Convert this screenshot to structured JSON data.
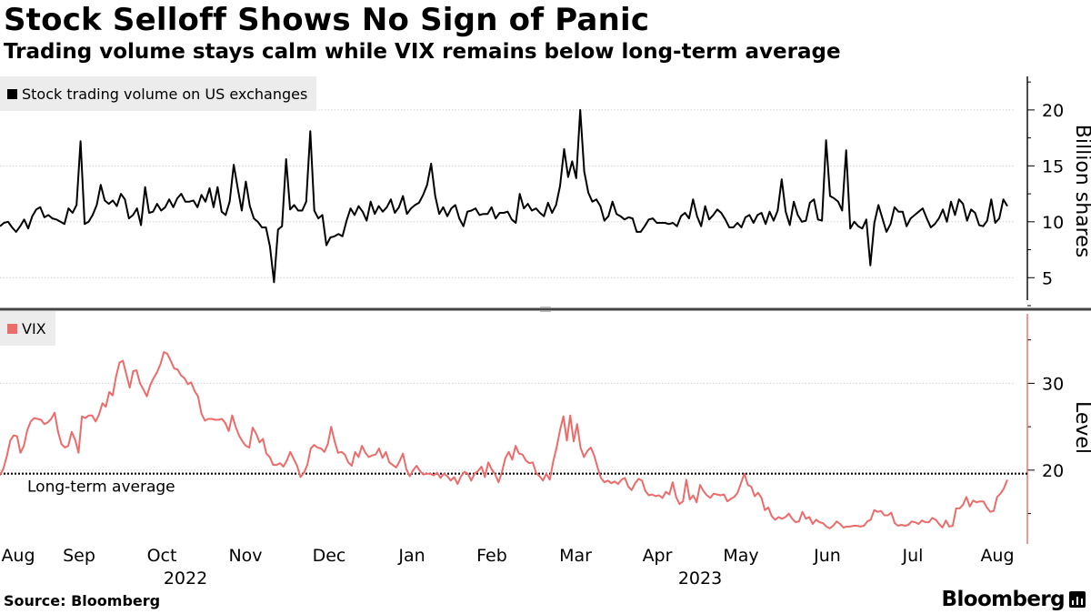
{
  "header": {
    "title": "Stock Selloff Shows No Sign of Panic",
    "subtitle": "Trading volume stays calm while VIX remains below long-term average"
  },
  "footer": {
    "source": "Source: Bloomberg",
    "logo": "Bloomberg"
  },
  "chart_data": [
    {
      "type": "line",
      "title": "Stock trading volume on US exchanges",
      "ylabel": "Billion shares",
      "ylim": [
        2.5,
        23
      ],
      "yticks": [
        5,
        10,
        15,
        20
      ],
      "color": "#000000",
      "legend": "Stock trading volume on US exchanges",
      "legend_position": "top-left",
      "series": [
        {
          "name": "Stock trading volume on US exchanges",
          "values": [
            9.6,
            9.9,
            10.0,
            9.5,
            9.1,
            9.6,
            10.2,
            9.4,
            10.5,
            11.1,
            11.3,
            10.4,
            10.6,
            10.3,
            10.2,
            10.0,
            9.8,
            11.2,
            10.8,
            11.5,
            17.2,
            9.8,
            10.0,
            10.6,
            11.5,
            13.3,
            11.9,
            11.6,
            11.9,
            11.4,
            12.5,
            12.0,
            10.3,
            10.6,
            11.2,
            9.7,
            13.1,
            10.8,
            10.9,
            11.6,
            11.0,
            11.3,
            12.0,
            11.3,
            12.1,
            12.5,
            11.8,
            11.8,
            11.9,
            11.3,
            12.4,
            11.8,
            13.0,
            11.3,
            13.1,
            10.9,
            10.6,
            11.8,
            15.1,
            13.0,
            11.0,
            13.6,
            11.4,
            10.3,
            10.0,
            9.5,
            9.5,
            7.8,
            4.6,
            9.3,
            9.6,
            15.6,
            11.1,
            11.5,
            11.0,
            11.0,
            11.8,
            18.1,
            11.0,
            10.3,
            10.6,
            7.9,
            8.6,
            8.7,
            8.9,
            8.7,
            10.1,
            11.2,
            10.6,
            11.4,
            10.9,
            10.1,
            11.8,
            10.7,
            11.4,
            10.9,
            11.3,
            12.0,
            10.8,
            11.3,
            12.3,
            10.7,
            11.2,
            11.5,
            11.7,
            12.4,
            13.3,
            15.2,
            12.3,
            10.7,
            11.3,
            10.5,
            11.2,
            11.5,
            10.3,
            9.6,
            10.9,
            11.0,
            11.2,
            10.6,
            10.7,
            10.7,
            11.3,
            10.3,
            10.8,
            10.8,
            10.9,
            10.2,
            9.9,
            12.5,
            11.2,
            11.6,
            11.0,
            11.2,
            10.8,
            10.5,
            11.7,
            10.8,
            11.5,
            13.2,
            16.5,
            14.0,
            15.4,
            13.9,
            20.0,
            14.5,
            12.6,
            11.8,
            12.0,
            11.4,
            10.1,
            10.5,
            11.8,
            10.7,
            10.5,
            10.2,
            10.4,
            10.3,
            9.1,
            9.1,
            9.6,
            10.2,
            10.3,
            9.9,
            9.9,
            9.9,
            9.8,
            9.9,
            9.6,
            10.5,
            10.8,
            10.3,
            12.0,
            10.5,
            9.6,
            11.4,
            10.2,
            10.6,
            11.1,
            10.8,
            10.2,
            9.5,
            9.5,
            9.9,
            9.5,
            10.4,
            10.6,
            9.9,
            10.6,
            10.8,
            9.8,
            10.9,
            10.1,
            11.0,
            13.8,
            10.9,
            9.7,
            11.8,
            10.6,
            10.0,
            10.1,
            11.7,
            12.0,
            10.2,
            10.1,
            17.3,
            12.3,
            12.1,
            11.8,
            11.0,
            16.4,
            9.4,
            10.0,
            9.6,
            9.4,
            10.2,
            6.1,
            9.9,
            11.5,
            10.3,
            9.1,
            9.8,
            11.3,
            10.9,
            10.9,
            9.6,
            10.3,
            10.6,
            10.9,
            11.2,
            10.3,
            9.5,
            9.8,
            10.3,
            11.1,
            10.0,
            11.8,
            10.6,
            12.0,
            11.6,
            10.1,
            11.1,
            10.8,
            9.7,
            9.6,
            10.1,
            12.0,
            9.9,
            10.3,
            12.0,
            11.4
          ]
        }
      ]
    },
    {
      "type": "line",
      "title": "VIX",
      "ylabel": "Level",
      "ylim": [
        11.5,
        38
      ],
      "yticks": [
        20,
        30
      ],
      "color": "#ec6b6b",
      "legend": "VIX",
      "legend_position": "top-left",
      "reference_line": {
        "label": "Long-term average",
        "value": 19.6
      },
      "series": [
        {
          "name": "VIX",
          "values": [
            19.4,
            20.2,
            21.6,
            23.4,
            24.0,
            23.9,
            22.0,
            22.8,
            24.6,
            25.6,
            26.0,
            25.9,
            25.8,
            25.3,
            25.5,
            25.9,
            26.6,
            24.4,
            23.0,
            22.6,
            22.8,
            24.4,
            23.5,
            22.0,
            26.2,
            26.0,
            26.3,
            26.3,
            25.6,
            26.4,
            27.7,
            27.3,
            29.0,
            28.6,
            30.8,
            32.4,
            32.6,
            31.0,
            29.5,
            31.4,
            31.5,
            30.0,
            29.3,
            28.5,
            29.8,
            30.6,
            31.3,
            32.2,
            33.6,
            33.4,
            32.6,
            31.7,
            31.6,
            30.9,
            30.6,
            29.9,
            30.1,
            29.1,
            28.5,
            26.5,
            25.7,
            25.9,
            25.9,
            25.8,
            25.8,
            25.9,
            25.4,
            24.5,
            26.3,
            25.0,
            24.0,
            23.3,
            22.8,
            22.6,
            24.9,
            24.2,
            23.2,
            23.6,
            21.9,
            21.5,
            20.6,
            20.6,
            20.8,
            20.4,
            21.1,
            22.1,
            21.3,
            20.5,
            19.2,
            19.7,
            20.6,
            22.5,
            22.9,
            22.6,
            22.5,
            22.1,
            23.0,
            25.0,
            23.3,
            22.0,
            22.1,
            21.8,
            20.9,
            20.5,
            22.1,
            21.5,
            22.8,
            22.0,
            21.5,
            21.7,
            21.8,
            22.5,
            21.4,
            22.1,
            20.9,
            20.6,
            20.3,
            21.0,
            21.9,
            20.1,
            19.3,
            20.0,
            20.5,
            19.9,
            19.5,
            19.6,
            19.6,
            19.4,
            19.7,
            19.1,
            19.6,
            19.3,
            18.8,
            19.2,
            18.4,
            19.3,
            19.8,
            19.6,
            18.8,
            19.6,
            19.9,
            20.4,
            19.2,
            20.9,
            20.1,
            19.5,
            18.6,
            19.8,
            21.4,
            22.1,
            21.2,
            22.8,
            21.9,
            21.8,
            21.1,
            20.8,
            20.9,
            19.7,
            19.3,
            18.8,
            19.6,
            18.9,
            21.0,
            22.6,
            24.6,
            26.2,
            23.4,
            26.3,
            23.3,
            25.3,
            22.6,
            21.5,
            22.2,
            22.6,
            21.7,
            20.3,
            19.1,
            18.6,
            18.8,
            18.5,
            18.7,
            18.4,
            18.9,
            19.1,
            18.1,
            17.7,
            18.5,
            19.0,
            18.8,
            17.6,
            17.1,
            17.2,
            17.0,
            17.1,
            16.8,
            17.5,
            17.2,
            18.6,
            16.9,
            16.1,
            16.4,
            18.9,
            16.6,
            17.1,
            16.3,
            18.3,
            17.6,
            17.1,
            16.8,
            17.3,
            17.2,
            17.1,
            17.2,
            16.4,
            16.7,
            16.9,
            17.4,
            18.5,
            19.6,
            18.3,
            18.1,
            17.0,
            17.4,
            16.8,
            15.4,
            15.7,
            14.7,
            14.3,
            14.6,
            14.4,
            14.6,
            15.0,
            14.4,
            14.0,
            14.1,
            15.2,
            14.4,
            14.6,
            13.8,
            14.3,
            14.0,
            13.9,
            13.5,
            13.3,
            13.6,
            14.1,
            13.8,
            13.4,
            13.5,
            13.5,
            13.6,
            13.6,
            13.5,
            13.6,
            14.1,
            14.3,
            15.4,
            15.2,
            15.3,
            14.8,
            14.8,
            15.1,
            13.9,
            13.6,
            13.7,
            13.6,
            13.7,
            14.1,
            14.0,
            13.8,
            14.2,
            14.0,
            14.0,
            14.5,
            14.3,
            13.8,
            13.4,
            14.2,
            13.5,
            13.6,
            15.6,
            15.6,
            16.0,
            16.9,
            15.8,
            16.5,
            16.3,
            16.4,
            16.4,
            15.7,
            15.2,
            15.3,
            16.9,
            17.3,
            17.9,
            18.9
          ]
        }
      ]
    }
  ],
  "x_axis": {
    "months": [
      "Aug",
      "Sep",
      "Oct",
      "Nov",
      "Dec",
      "Jan",
      "Feb",
      "Mar",
      "Apr",
      "May",
      "Jun",
      "Jul",
      "Aug"
    ],
    "years": [
      "2022",
      "2023"
    ]
  }
}
